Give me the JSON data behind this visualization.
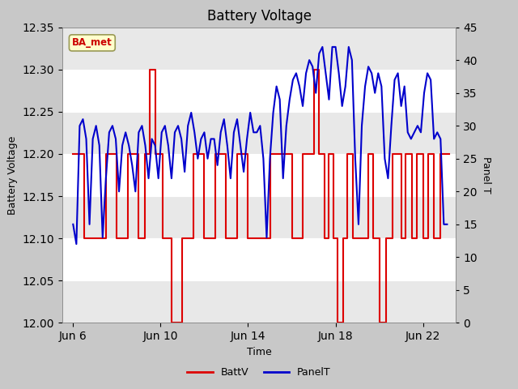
{
  "title": "Battery Voltage",
  "xlabel": "Time",
  "ylabel_left": "Battery Voltage",
  "ylabel_right": "Panel T",
  "ylim_left": [
    12.0,
    12.35
  ],
  "ylim_right": [
    0,
    45
  ],
  "yticks_left": [
    12.0,
    12.05,
    12.1,
    12.15,
    12.2,
    12.25,
    12.3,
    12.35
  ],
  "yticks_right": [
    0,
    5,
    10,
    15,
    20,
    25,
    30,
    35,
    40,
    45
  ],
  "xlim": [
    5.5,
    23.5
  ],
  "bg_color": "#c8c8c8",
  "plot_bg_color": "#ffffff",
  "label_box_text": "BA_met",
  "label_box_facecolor": "#ffffcc",
  "label_box_edgecolor": "#999955",
  "legend_entries": [
    "BattV",
    "PanelT"
  ],
  "battv_color": "#dd0000",
  "panelt_color": "#0000cc",
  "x_tick_labels": [
    "Jun 6",
    "Jun 10",
    "Jun 14",
    "Jun 18",
    "Jun 22"
  ],
  "x_tick_positions": [
    6,
    10,
    14,
    18,
    22
  ],
  "band_colors": [
    "#e8e8e8",
    "#ffffff"
  ],
  "battv_x": [
    6.0,
    6.0,
    6.5,
    6.5,
    7.5,
    7.5,
    8.0,
    8.0,
    8.5,
    8.5,
    9.0,
    9.0,
    9.3,
    9.3,
    9.5,
    9.5,
    9.75,
    9.75,
    10.1,
    10.1,
    10.5,
    10.5,
    11.0,
    11.0,
    11.5,
    11.5,
    12.0,
    12.0,
    12.5,
    12.5,
    13.0,
    13.0,
    13.5,
    13.5,
    14.0,
    14.0,
    15.0,
    15.0,
    16.0,
    16.0,
    16.5,
    16.5,
    17.0,
    17.0,
    17.25,
    17.25,
    17.5,
    17.5,
    17.7,
    17.7,
    17.9,
    17.9,
    18.1,
    18.1,
    18.35,
    18.35,
    18.55,
    18.55,
    18.8,
    18.8,
    19.1,
    19.1,
    19.5,
    19.5,
    19.7,
    19.7,
    20.0,
    20.0,
    20.3,
    20.3,
    20.6,
    20.6,
    21.0,
    21.0,
    21.2,
    21.2,
    21.5,
    21.5,
    21.7,
    21.7,
    22.0,
    22.0,
    22.25,
    22.25,
    22.5,
    22.5,
    22.8,
    22.8,
    23.2,
    23.2
  ],
  "battv_y": [
    12.2,
    12.2,
    12.2,
    12.1,
    12.1,
    12.2,
    12.2,
    12.1,
    12.1,
    12.2,
    12.2,
    12.1,
    12.1,
    12.2,
    12.2,
    12.3,
    12.3,
    12.2,
    12.2,
    12.1,
    12.1,
    12.0,
    12.0,
    12.1,
    12.1,
    12.2,
    12.2,
    12.1,
    12.1,
    12.2,
    12.2,
    12.1,
    12.1,
    12.2,
    12.2,
    12.1,
    12.1,
    12.2,
    12.2,
    12.1,
    12.1,
    12.2,
    12.2,
    12.3,
    12.3,
    12.2,
    12.2,
    12.1,
    12.1,
    12.2,
    12.2,
    12.1,
    12.1,
    12.0,
    12.0,
    12.1,
    12.1,
    12.2,
    12.2,
    12.1,
    12.1,
    12.1,
    12.1,
    12.2,
    12.2,
    12.1,
    12.1,
    12.0,
    12.0,
    12.1,
    12.1,
    12.2,
    12.2,
    12.1,
    12.1,
    12.2,
    12.2,
    12.1,
    12.1,
    12.2,
    12.2,
    12.1,
    12.1,
    12.2,
    12.2,
    12.1,
    12.1,
    12.2,
    12.2,
    12.2
  ],
  "panelt_x": [
    6.0,
    6.15,
    6.3,
    6.45,
    6.6,
    6.75,
    6.9,
    7.05,
    7.2,
    7.35,
    7.5,
    7.65,
    7.8,
    7.95,
    8.1,
    8.25,
    8.4,
    8.55,
    8.7,
    8.85,
    9.0,
    9.15,
    9.3,
    9.45,
    9.6,
    9.75,
    9.9,
    10.05,
    10.2,
    10.35,
    10.5,
    10.65,
    10.8,
    10.95,
    11.1,
    11.25,
    11.4,
    11.55,
    11.7,
    11.85,
    12.0,
    12.15,
    12.3,
    12.45,
    12.6,
    12.75,
    12.9,
    13.05,
    13.2,
    13.35,
    13.5,
    13.65,
    13.8,
    13.95,
    14.1,
    14.25,
    14.4,
    14.55,
    14.7,
    14.85,
    15.0,
    15.15,
    15.3,
    15.45,
    15.6,
    15.75,
    15.9,
    16.05,
    16.2,
    16.35,
    16.5,
    16.65,
    16.8,
    16.95,
    17.1,
    17.25,
    17.4,
    17.55,
    17.7,
    17.85,
    18.0,
    18.15,
    18.3,
    18.45,
    18.6,
    18.75,
    18.9,
    19.05,
    19.2,
    19.35,
    19.5,
    19.65,
    19.8,
    19.95,
    20.1,
    20.25,
    20.4,
    20.55,
    20.7,
    20.85,
    21.0,
    21.15,
    21.3,
    21.45,
    21.6,
    21.75,
    21.9,
    22.05,
    22.2,
    22.35,
    22.5,
    22.65,
    22.8,
    22.95,
    23.1
  ],
  "panelt_y": [
    15,
    12,
    30,
    31,
    28,
    15,
    28,
    30,
    27,
    13,
    22,
    29,
    30,
    28,
    20,
    27,
    29,
    27,
    24,
    20,
    29,
    30,
    27,
    22,
    28,
    27,
    22,
    29,
    30,
    27,
    22,
    29,
    30,
    28,
    23,
    30,
    32,
    29,
    25,
    28,
    29,
    25,
    28,
    28,
    24,
    29,
    31,
    27,
    22,
    29,
    31,
    27,
    23,
    28,
    32,
    29,
    29,
    30,
    25,
    13,
    25,
    32,
    36,
    34,
    22,
    30,
    34,
    37,
    38,
    36,
    33,
    38,
    40,
    39,
    35,
    41,
    42,
    38,
    34,
    42,
    42,
    38,
    33,
    36,
    42,
    40,
    25,
    15,
    30,
    36,
    39,
    38,
    35,
    38,
    36,
    25,
    22,
    30,
    37,
    38,
    33,
    36,
    29,
    28,
    29,
    30,
    29,
    35,
    38,
    37,
    28,
    29,
    28,
    15,
    15
  ]
}
